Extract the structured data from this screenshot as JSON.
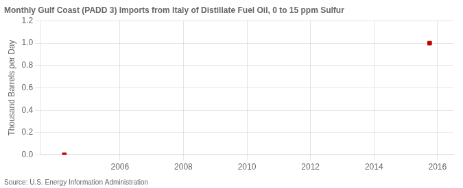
{
  "chart_data": {
    "type": "scatter",
    "title": "Monthly Gulf Coast (PADD 3) Imports from Italy of Distillate Fuel Oil, 0 to 15 ppm Sulfur",
    "y_label": "Thousand Barrels per Day",
    "annotations": [
      "Source: U.S. Energy Information Administration"
    ],
    "x": [
      2004.25,
      2015.75
    ],
    "values": [
      0,
      1.0
    ],
    "color": "#c00000",
    "marker": "square",
    "xlim": [
      2003.5,
      2016.5
    ],
    "xticks": [
      2006,
      2008,
      2010,
      2012,
      2014,
      2016
    ],
    "ylim": [
      0,
      1.2
    ],
    "yticks": [
      {
        "value": 0,
        "label": "0.0"
      },
      0.2,
      0.4,
      0.6,
      0.8,
      {
        "value": 1,
        "label": "1.0"
      },
      1.2
    ],
    "grid": true
  }
}
